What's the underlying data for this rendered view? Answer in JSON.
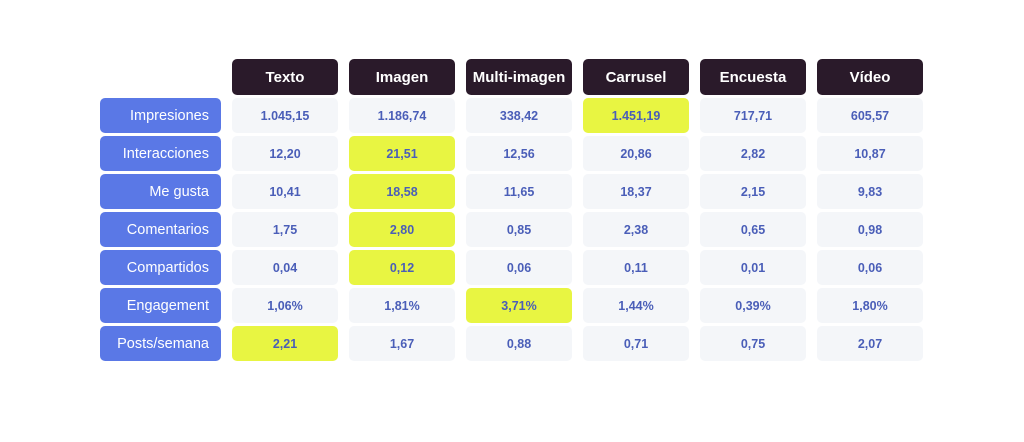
{
  "chart_data": {
    "type": "table",
    "columns": [
      "Texto",
      "Imagen",
      "Multi-imagen",
      "Carrusel",
      "Encuesta",
      "Vídeo"
    ],
    "rows": [
      {
        "label": "Impresiones",
        "values": [
          "1.045,15",
          "1.186,74",
          "338,42",
          "1.451,19",
          "717,71",
          "605,57"
        ],
        "highlight": [
          false,
          false,
          false,
          true,
          false,
          false
        ]
      },
      {
        "label": "Interacciones",
        "values": [
          "12,20",
          "21,51",
          "12,56",
          "20,86",
          "2,82",
          "10,87"
        ],
        "highlight": [
          false,
          true,
          false,
          false,
          false,
          false
        ]
      },
      {
        "label": "Me gusta",
        "values": [
          "10,41",
          "18,58",
          "11,65",
          "18,37",
          "2,15",
          "9,83"
        ],
        "highlight": [
          false,
          true,
          false,
          false,
          false,
          false
        ]
      },
      {
        "label": "Comentarios",
        "values": [
          "1,75",
          "2,80",
          "0,85",
          "2,38",
          "0,65",
          "0,98"
        ],
        "highlight": [
          false,
          true,
          false,
          false,
          false,
          false
        ]
      },
      {
        "label": "Compartidos",
        "values": [
          "0,04",
          "0,12",
          "0,06",
          "0,11",
          "0,01",
          "0,06"
        ],
        "highlight": [
          false,
          true,
          false,
          false,
          false,
          false
        ]
      },
      {
        "label": "Engagement",
        "values": [
          "1,06%",
          "1,81%",
          "3,71%",
          "1,44%",
          "0,39%",
          "1,80%"
        ],
        "highlight": [
          false,
          false,
          true,
          false,
          false,
          false
        ]
      },
      {
        "label": "Posts/semana",
        "values": [
          "2,21",
          "1,67",
          "0,88",
          "0,71",
          "0,75",
          "2,07"
        ],
        "highlight": [
          true,
          false,
          false,
          false,
          false,
          false
        ]
      }
    ],
    "colors": {
      "column_header_bg": "#2a1a2a",
      "row_header_bg": "#5a78e6",
      "cell_bg": "#f4f6f9",
      "highlight_bg": "#e8f542",
      "value_text": "#4a5eb8"
    }
  }
}
